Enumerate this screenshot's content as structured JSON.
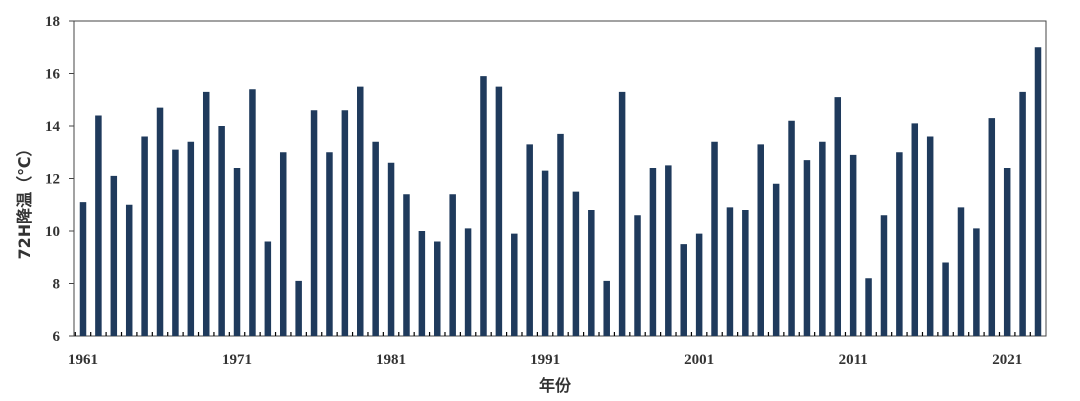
{
  "chart_data": {
    "type": "bar",
    "xlabel": "年份",
    "ylabel": "72H降温（℃）",
    "ylim": [
      6,
      18
    ],
    "yticks": [
      6,
      8,
      10,
      12,
      14,
      16,
      18
    ],
    "xtick_labels": [
      "1961",
      "1971",
      "1981",
      "1991",
      "2001",
      "2011",
      "2021"
    ],
    "grid": false,
    "bar_color": "#1f3a5c",
    "categories": [
      1961,
      1962,
      1963,
      1964,
      1965,
      1966,
      1967,
      1968,
      1969,
      1970,
      1971,
      1972,
      1973,
      1974,
      1975,
      1976,
      1977,
      1978,
      1979,
      1980,
      1981,
      1982,
      1983,
      1984,
      1985,
      1986,
      1987,
      1988,
      1989,
      1990,
      1991,
      1992,
      1993,
      1994,
      1995,
      1996,
      1997,
      1998,
      1999,
      2000,
      2001,
      2002,
      2003,
      2004,
      2005,
      2006,
      2007,
      2008,
      2009,
      2010,
      2011,
      2012,
      2013,
      2014,
      2015,
      2016,
      2017,
      2018,
      2019,
      2020,
      2021,
      2022,
      2023
    ],
    "values": [
      11.1,
      14.4,
      12.1,
      11.0,
      13.6,
      14.7,
      13.1,
      13.4,
      15.3,
      14.0,
      12.4,
      15.4,
      9.6,
      13.0,
      8.1,
      14.6,
      13.0,
      14.6,
      15.5,
      13.4,
      12.6,
      11.4,
      10.0,
      9.6,
      11.4,
      10.1,
      15.9,
      15.5,
      9.9,
      13.3,
      12.3,
      13.7,
      11.5,
      10.8,
      8.1,
      15.3,
      10.6,
      12.4,
      12.5,
      9.5,
      9.9,
      13.4,
      10.9,
      10.8,
      13.3,
      11.8,
      14.2,
      12.7,
      13.4,
      15.1,
      12.9,
      8.2,
      10.6,
      13.0,
      14.1,
      13.6,
      8.8,
      10.9,
      10.1,
      14.3,
      12.4,
      15.3,
      17.0
    ]
  }
}
